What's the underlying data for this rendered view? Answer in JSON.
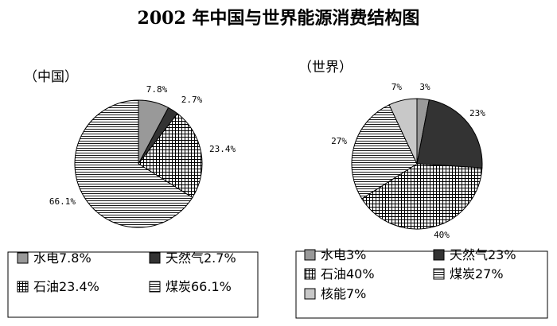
{
  "title": "2002 年中国与世界能源消费结构图",
  "chart_data": [
    {
      "type": "pie",
      "subtitle": "（中国）",
      "categories": [
        "水电",
        "天然气",
        "石油",
        "煤炭"
      ],
      "values": [
        7.8,
        2.7,
        23.4,
        66.1
      ],
      "data_labels": [
        "7.8%",
        "2.7%",
        "23.4%",
        "66.1%"
      ],
      "legend": [
        "水电7.8%",
        "天然气2.7%",
        "石油23.4%",
        "煤炭66.1%"
      ],
      "legend_position": "bottom"
    },
    {
      "type": "pie",
      "subtitle": "（世界）",
      "categories": [
        "水电",
        "天然气",
        "石油",
        "煤炭",
        "核能"
      ],
      "values": [
        3,
        23,
        40,
        27,
        7
      ],
      "data_labels": [
        "3%",
        "23%",
        "40%",
        "27%",
        "7%"
      ],
      "legend": [
        "水电3%",
        "天然气23%",
        "石油40%",
        "煤炭27%",
        "核能7%"
      ],
      "legend_position": "bottom"
    }
  ],
  "fills": {
    "水电": "#999999",
    "天然气": "#333333",
    "石油": "crosshatch",
    "煤炭": "horizontal-lines",
    "核能": "#c8c8c8"
  }
}
